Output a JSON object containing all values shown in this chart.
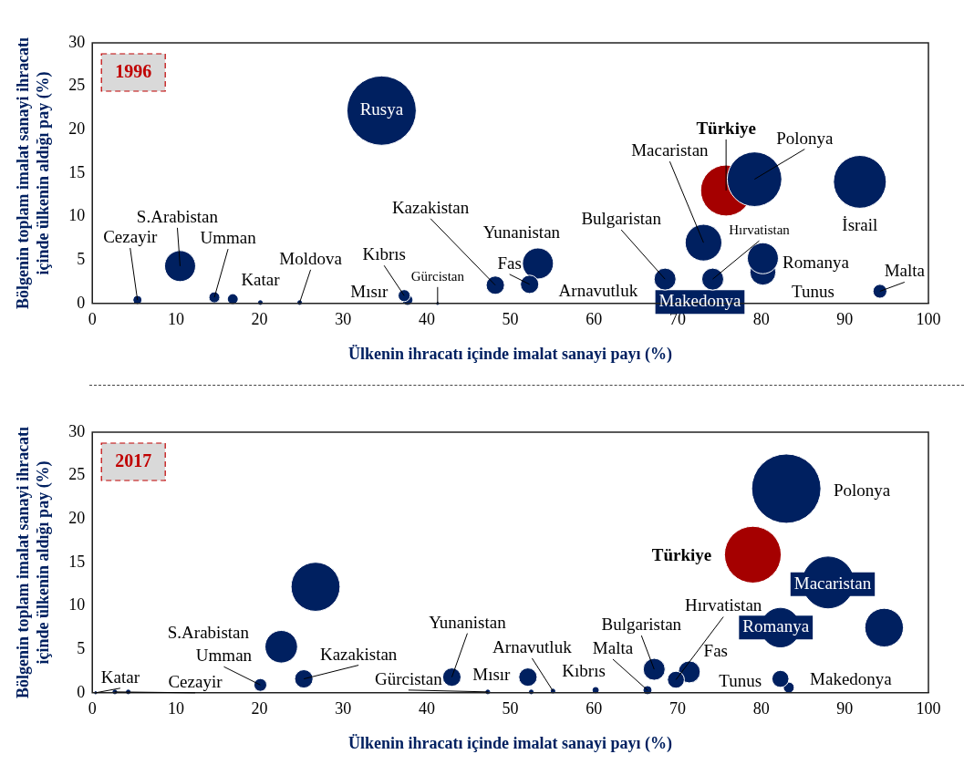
{
  "chart_data": [
    {
      "type": "bubble",
      "title": "1996",
      "xlabel": "Ülkenin ihracatı içinde imalat sanayi payı (%)",
      "ylabel": "Bölgenin toplam imalat sanayi ihracatı içinde ülkenin aldığı pay (%)",
      "xlim": [
        0,
        100
      ],
      "ylim": [
        0,
        30
      ],
      "xticks": [
        0,
        10,
        20,
        30,
        40,
        50,
        60,
        70,
        80,
        90,
        100
      ],
      "yticks": [
        0,
        5,
        10,
        15,
        20,
        25,
        30
      ],
      "annotations": [
        "Arnavutluk",
        {
          "text": "Makedonya",
          "x": 74.2,
          "y": 2.8
        }
      ],
      "series": [
        {
          "name": "Cezayir",
          "color": "#002060",
          "x": [
            5.4
          ],
          "values": [
            0.4
          ],
          "sizes": [
            0.011
          ]
        },
        {
          "name": "S.Arabistan",
          "color": "#002060",
          "x": [
            10.5
          ],
          "values": [
            4.3
          ],
          "sizes": [
            0.2
          ]
        },
        {
          "name": "Umman",
          "color": "#002060",
          "x": [
            14.6
          ],
          "values": [
            0.7
          ],
          "sizes": [
            0.025
          ]
        },
        {
          "color": "#002060",
          "x": [
            16.8
          ],
          "values": [
            0.5
          ],
          "sizes": [
            0.017
          ]
        },
        {
          "name": "Katar",
          "color": "#002060",
          "x": [
            20.1
          ],
          "values": [
            0.1
          ],
          "sizes": [
            0.003
          ]
        },
        {
          "name": "Moldova",
          "color": "#002060",
          "x": [
            24.8
          ],
          "values": [
            0.1
          ],
          "sizes": [
            0.003
          ]
        },
        {
          "name": "Rusya",
          "color": "#002060",
          "x": [
            34.6
          ],
          "values": [
            22.2
          ],
          "sizes": [
            1
          ]
        },
        {
          "name": "Kıbrıs",
          "color": "#002060",
          "x": [
            37.3
          ],
          "values": [
            0.9
          ],
          "sizes": [
            0.03
          ]
        },
        {
          "name": "Mısır",
          "color": "#002060",
          "x": [
            37.7
          ],
          "values": [
            0.4
          ],
          "sizes": [
            0.017
          ]
        },
        {
          "name": "Gürcistan",
          "color": "#002060",
          "x": [
            41.3
          ],
          "values": [
            0
          ],
          "sizes": [
            0.001
          ]
        },
        {
          "name": "Kazakistan",
          "color": "#002060",
          "x": [
            48.2
          ],
          "values": [
            2.1
          ],
          "sizes": [
            0.07
          ]
        },
        {
          "name": "Fas",
          "color": "#002060",
          "x": [
            52.3
          ],
          "values": [
            2.2
          ],
          "sizes": [
            0.07
          ]
        },
        {
          "name": "Yunanistan",
          "color": "#002060",
          "x": [
            53.3
          ],
          "values": [
            4.6
          ],
          "sizes": [
            0.2
          ]
        },
        {
          "name": "Bulgaristan",
          "color": "#002060",
          "x": [
            68.5
          ],
          "values": [
            2.8
          ],
          "sizes": [
            0.1
          ]
        },
        {
          "name": "Macaristan",
          "color": "#002060",
          "x": [
            73.1
          ],
          "values": [
            7
          ],
          "sizes": [
            0.28
          ]
        },
        {
          "name": "Hırvatistan",
          "color": "#002060",
          "x": [
            74.2
          ],
          "values": [
            2.8
          ],
          "sizes": [
            0.1
          ]
        },
        {
          "name": "Polonya",
          "color": "#002060",
          "x": [
            79.2
          ],
          "values": [
            14.3
          ],
          "sizes": [
            0.62
          ]
        },
        {
          "name": "Türkiye",
          "color": "#a50000",
          "x": [
            75.8
          ],
          "values": [
            13
          ],
          "sizes": [
            0.54
          ]
        },
        {
          "name": "İsrail",
          "color": "#002060",
          "x": [
            91.8
          ],
          "values": [
            14
          ],
          "sizes": [
            0.58
          ]
        },
        {
          "name": "Romanya",
          "color": "#002060",
          "x": [
            80.2
          ],
          "values": [
            5.2
          ],
          "sizes": [
            0.2
          ]
        },
        {
          "name": "Tunus",
          "color": "#002060",
          "x": [
            80.2
          ],
          "values": [
            3.6
          ],
          "sizes": [
            0.14
          ]
        },
        {
          "name": "Malta",
          "color": "#002060",
          "x": [
            94.2
          ],
          "values": [
            1.4
          ],
          "sizes": [
            0.04
          ]
        }
      ]
    },
    {
      "type": "bubble",
      "title": "2017",
      "xlabel": "Ülkenin ihracatı içinde imalat sanayi payı (%)",
      "ylabel": "Bölgenin toplam imalat sanayi ihracatı içinde ülkenin aldığı pay (%)",
      "xlim": [
        0,
        100
      ],
      "ylim": [
        0,
        30
      ],
      "xticks": [
        0,
        10,
        20,
        30,
        40,
        50,
        60,
        70,
        80,
        90,
        100
      ],
      "yticks": [
        0,
        5,
        10,
        15,
        20,
        25,
        30
      ],
      "series": [
        {
          "name": "Katar",
          "color": "#002060",
          "x": [
            0.4
          ],
          "values": [
            0
          ],
          "sizes": [
            0.001
          ]
        },
        {
          "name": "Cezayir",
          "color": "#002060",
          "x": [
            2.7
          ],
          "values": [
            0.1
          ],
          "sizes": [
            0.003
          ]
        },
        {
          "color": "#002060",
          "x": [
            4.3
          ],
          "values": [
            0.1
          ],
          "sizes": [
            0.003
          ]
        },
        {
          "name": "Umman",
          "color": "#002060",
          "x": [
            20.1
          ],
          "values": [
            0.9
          ],
          "sizes": [
            0.034
          ]
        },
        {
          "name": "S.Arabistan",
          "color": "#002060",
          "x": [
            22.6
          ],
          "values": [
            5.3
          ],
          "sizes": [
            0.22
          ]
        },
        {
          "name": "Kazakistan",
          "color": "#002060",
          "x": [
            25.3
          ],
          "values": [
            1.6
          ],
          "sizes": [
            0.07
          ]
        },
        {
          "color": "#002060",
          "x": [
            26.7
          ],
          "values": [
            12.2
          ],
          "sizes": [
            0.5
          ]
        },
        {
          "name": "Yunanistan",
          "color": "#002060",
          "x": [
            43
          ],
          "values": [
            1.8
          ],
          "sizes": [
            0.07
          ]
        },
        {
          "name": "Gürcistan",
          "color": "#002060",
          "x": [
            47.3
          ],
          "values": [
            0.1
          ],
          "sizes": [
            0.003
          ]
        },
        {
          "name": "Mısır",
          "color": "#002060",
          "x": [
            52.1
          ],
          "values": [
            1.8
          ],
          "sizes": [
            0.07
          ]
        },
        {
          "color": "#002060",
          "x": [
            52.5
          ],
          "values": [
            0.1
          ],
          "sizes": [
            0.003
          ]
        },
        {
          "name": "Arnavutluk",
          "color": "#002060",
          "x": [
            55.1
          ],
          "values": [
            0.2
          ],
          "sizes": [
            0.003
          ]
        },
        {
          "name": "Kıbrıs",
          "color": "#002060",
          "x": [
            60.2
          ],
          "values": [
            0.3
          ],
          "sizes": [
            0.006
          ]
        },
        {
          "name": "Malta",
          "color": "#002060",
          "x": [
            66.4
          ],
          "values": [
            0.3
          ],
          "sizes": [
            0.011
          ]
        },
        {
          "name": "Bulgaristan",
          "color": "#002060",
          "x": [
            67.2
          ],
          "values": [
            2.7
          ],
          "sizes": [
            0.1
          ]
        },
        {
          "name": "Hırvatistan",
          "color": "#002060",
          "x": [
            69.8
          ],
          "values": [
            1.5
          ],
          "sizes": [
            0.06
          ]
        },
        {
          "name": "Fas",
          "color": "#002060",
          "x": [
            71.4
          ],
          "values": [
            2.4
          ],
          "sizes": [
            0.1
          ]
        },
        {
          "name": "Türkiye",
          "color": "#a50000",
          "x": [
            79
          ],
          "values": [
            15.9
          ],
          "sizes": [
            0.67
          ]
        },
        {
          "name": "Polonya",
          "color": "#002060",
          "x": [
            83
          ],
          "values": [
            23.5
          ],
          "sizes": [
            1
          ]
        },
        {
          "name": "Macaristan",
          "color": "#002060",
          "x": [
            88
          ],
          "values": [
            12.7
          ],
          "sizes": [
            0.54
          ]
        },
        {
          "name": "Romanya",
          "color": "#002060",
          "x": [
            82.3
          ],
          "values": [
            7.5
          ],
          "sizes": [
            0.31
          ]
        },
        {
          "color": "#002060",
          "x": [
            94.7
          ],
          "values": [
            7.5
          ],
          "sizes": [
            0.31
          ]
        },
        {
          "name": "Tunus",
          "color": "#002060",
          "x": [
            82.3
          ],
          "values": [
            1.6
          ],
          "sizes": [
            0.06
          ]
        },
        {
          "name": "Makedonya",
          "color": "#002060",
          "x": [
            83.3
          ],
          "values": [
            0.6
          ],
          "sizes": [
            0.025
          ]
        }
      ]
    }
  ]
}
